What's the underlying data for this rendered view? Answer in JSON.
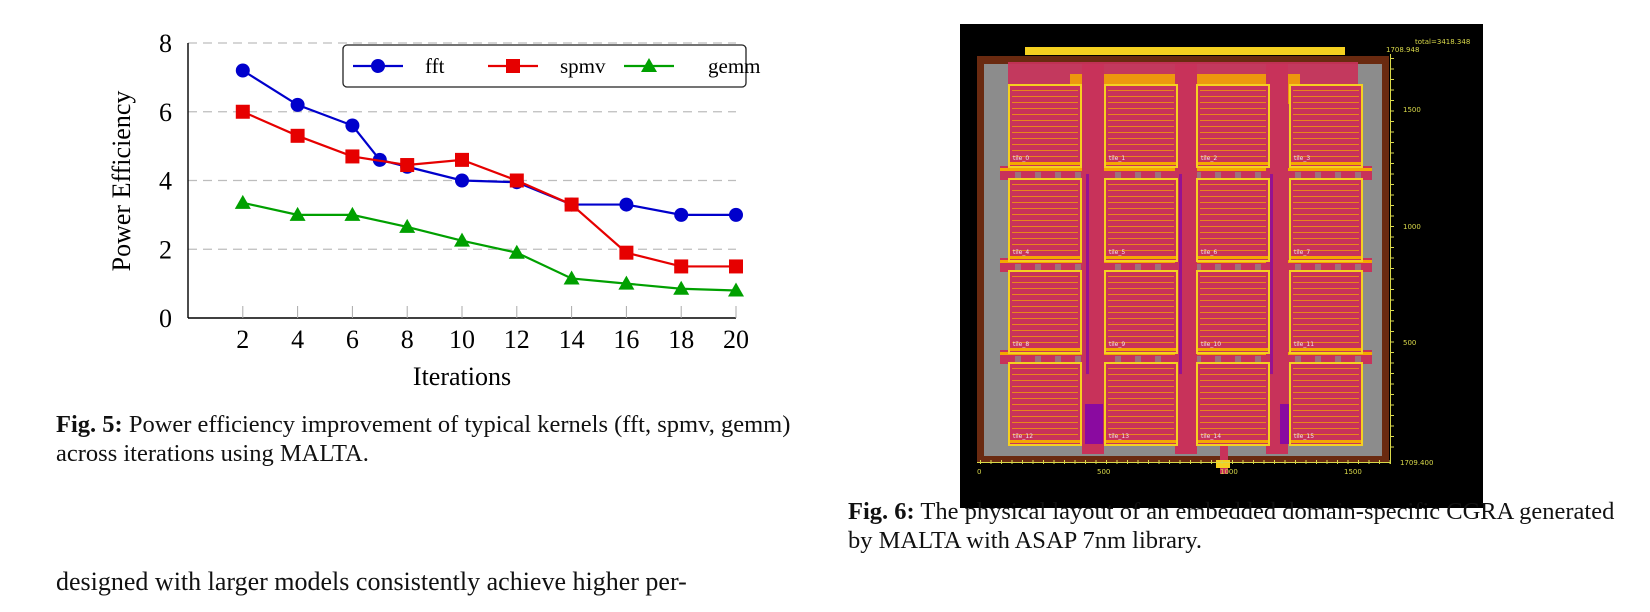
{
  "figure5": {
    "caption_label": "Fig. 5:",
    "caption_text": " Power efficiency improvement of typical kernels (fft, spmv, gemm) across iterations using MALTA."
  },
  "figure6": {
    "caption_label": "Fig. 6:",
    "caption_text": " The physical layout of an embedded domain-specific CGRA generated by MALTA with ASAP 7nm library.",
    "layout_image": {
      "total_label": "total=3418.348",
      "top_right_label": "1708.948",
      "bottom_right_label": "1709.400",
      "y_scale_labels": [
        "1500",
        "1000",
        "500"
      ],
      "x_scale_labels": [
        "0",
        "500",
        "1000",
        "1500"
      ],
      "tile_labels": [
        "tile_0",
        "tile_1",
        "tile_2",
        "tile_3",
        "tile_4",
        "tile_5",
        "tile_6",
        "tile_7",
        "tile_8",
        "tile_9",
        "tile_10",
        "tile_11",
        "tile_12",
        "tile_13",
        "tile_14",
        "tile_15"
      ],
      "colors": {
        "background": "#000000",
        "core": "#8c8c8c",
        "routing": "#c8325a",
        "metal": "#f5a800",
        "pad": "#f5d020",
        "via": "#8a0aa0"
      }
    }
  },
  "body_text": "designed with larger models consistently achieve higher per-",
  "chart_data": {
    "type": "line",
    "title": "",
    "xlabel": "Iterations",
    "ylabel": "Power Efficiency",
    "xlim": [
      0,
      20
    ],
    "ylim": [
      0,
      8
    ],
    "xticks": [
      2,
      4,
      6,
      8,
      10,
      12,
      14,
      16,
      18,
      20
    ],
    "yticks": [
      0,
      2,
      4,
      6,
      8
    ],
    "grid": "horizontal-dashed",
    "legend_position": "top-right",
    "series": [
      {
        "name": "fft",
        "color": "#0000cc",
        "marker": "circle",
        "x": [
          2,
          4,
          6,
          7,
          8,
          10,
          12,
          14,
          16,
          18,
          20
        ],
        "values": [
          7.2,
          6.2,
          5.6,
          4.6,
          4.4,
          4.0,
          3.95,
          3.3,
          3.3,
          3.0,
          3.0
        ]
      },
      {
        "name": "spmv",
        "color": "#e60000",
        "marker": "square",
        "x": [
          2,
          4,
          6,
          8,
          10,
          12,
          14,
          16,
          18,
          20
        ],
        "values": [
          6.0,
          5.3,
          4.7,
          4.45,
          4.6,
          4.0,
          3.3,
          1.9,
          1.5,
          1.5
        ]
      },
      {
        "name": "gemm",
        "color": "#00a000",
        "marker": "triangle",
        "x": [
          2,
          4,
          6,
          8,
          10,
          12,
          14,
          16,
          18,
          20
        ],
        "values": [
          3.35,
          3.0,
          3.0,
          2.65,
          2.25,
          1.9,
          1.15,
          1.0,
          0.85,
          0.8
        ]
      }
    ]
  }
}
